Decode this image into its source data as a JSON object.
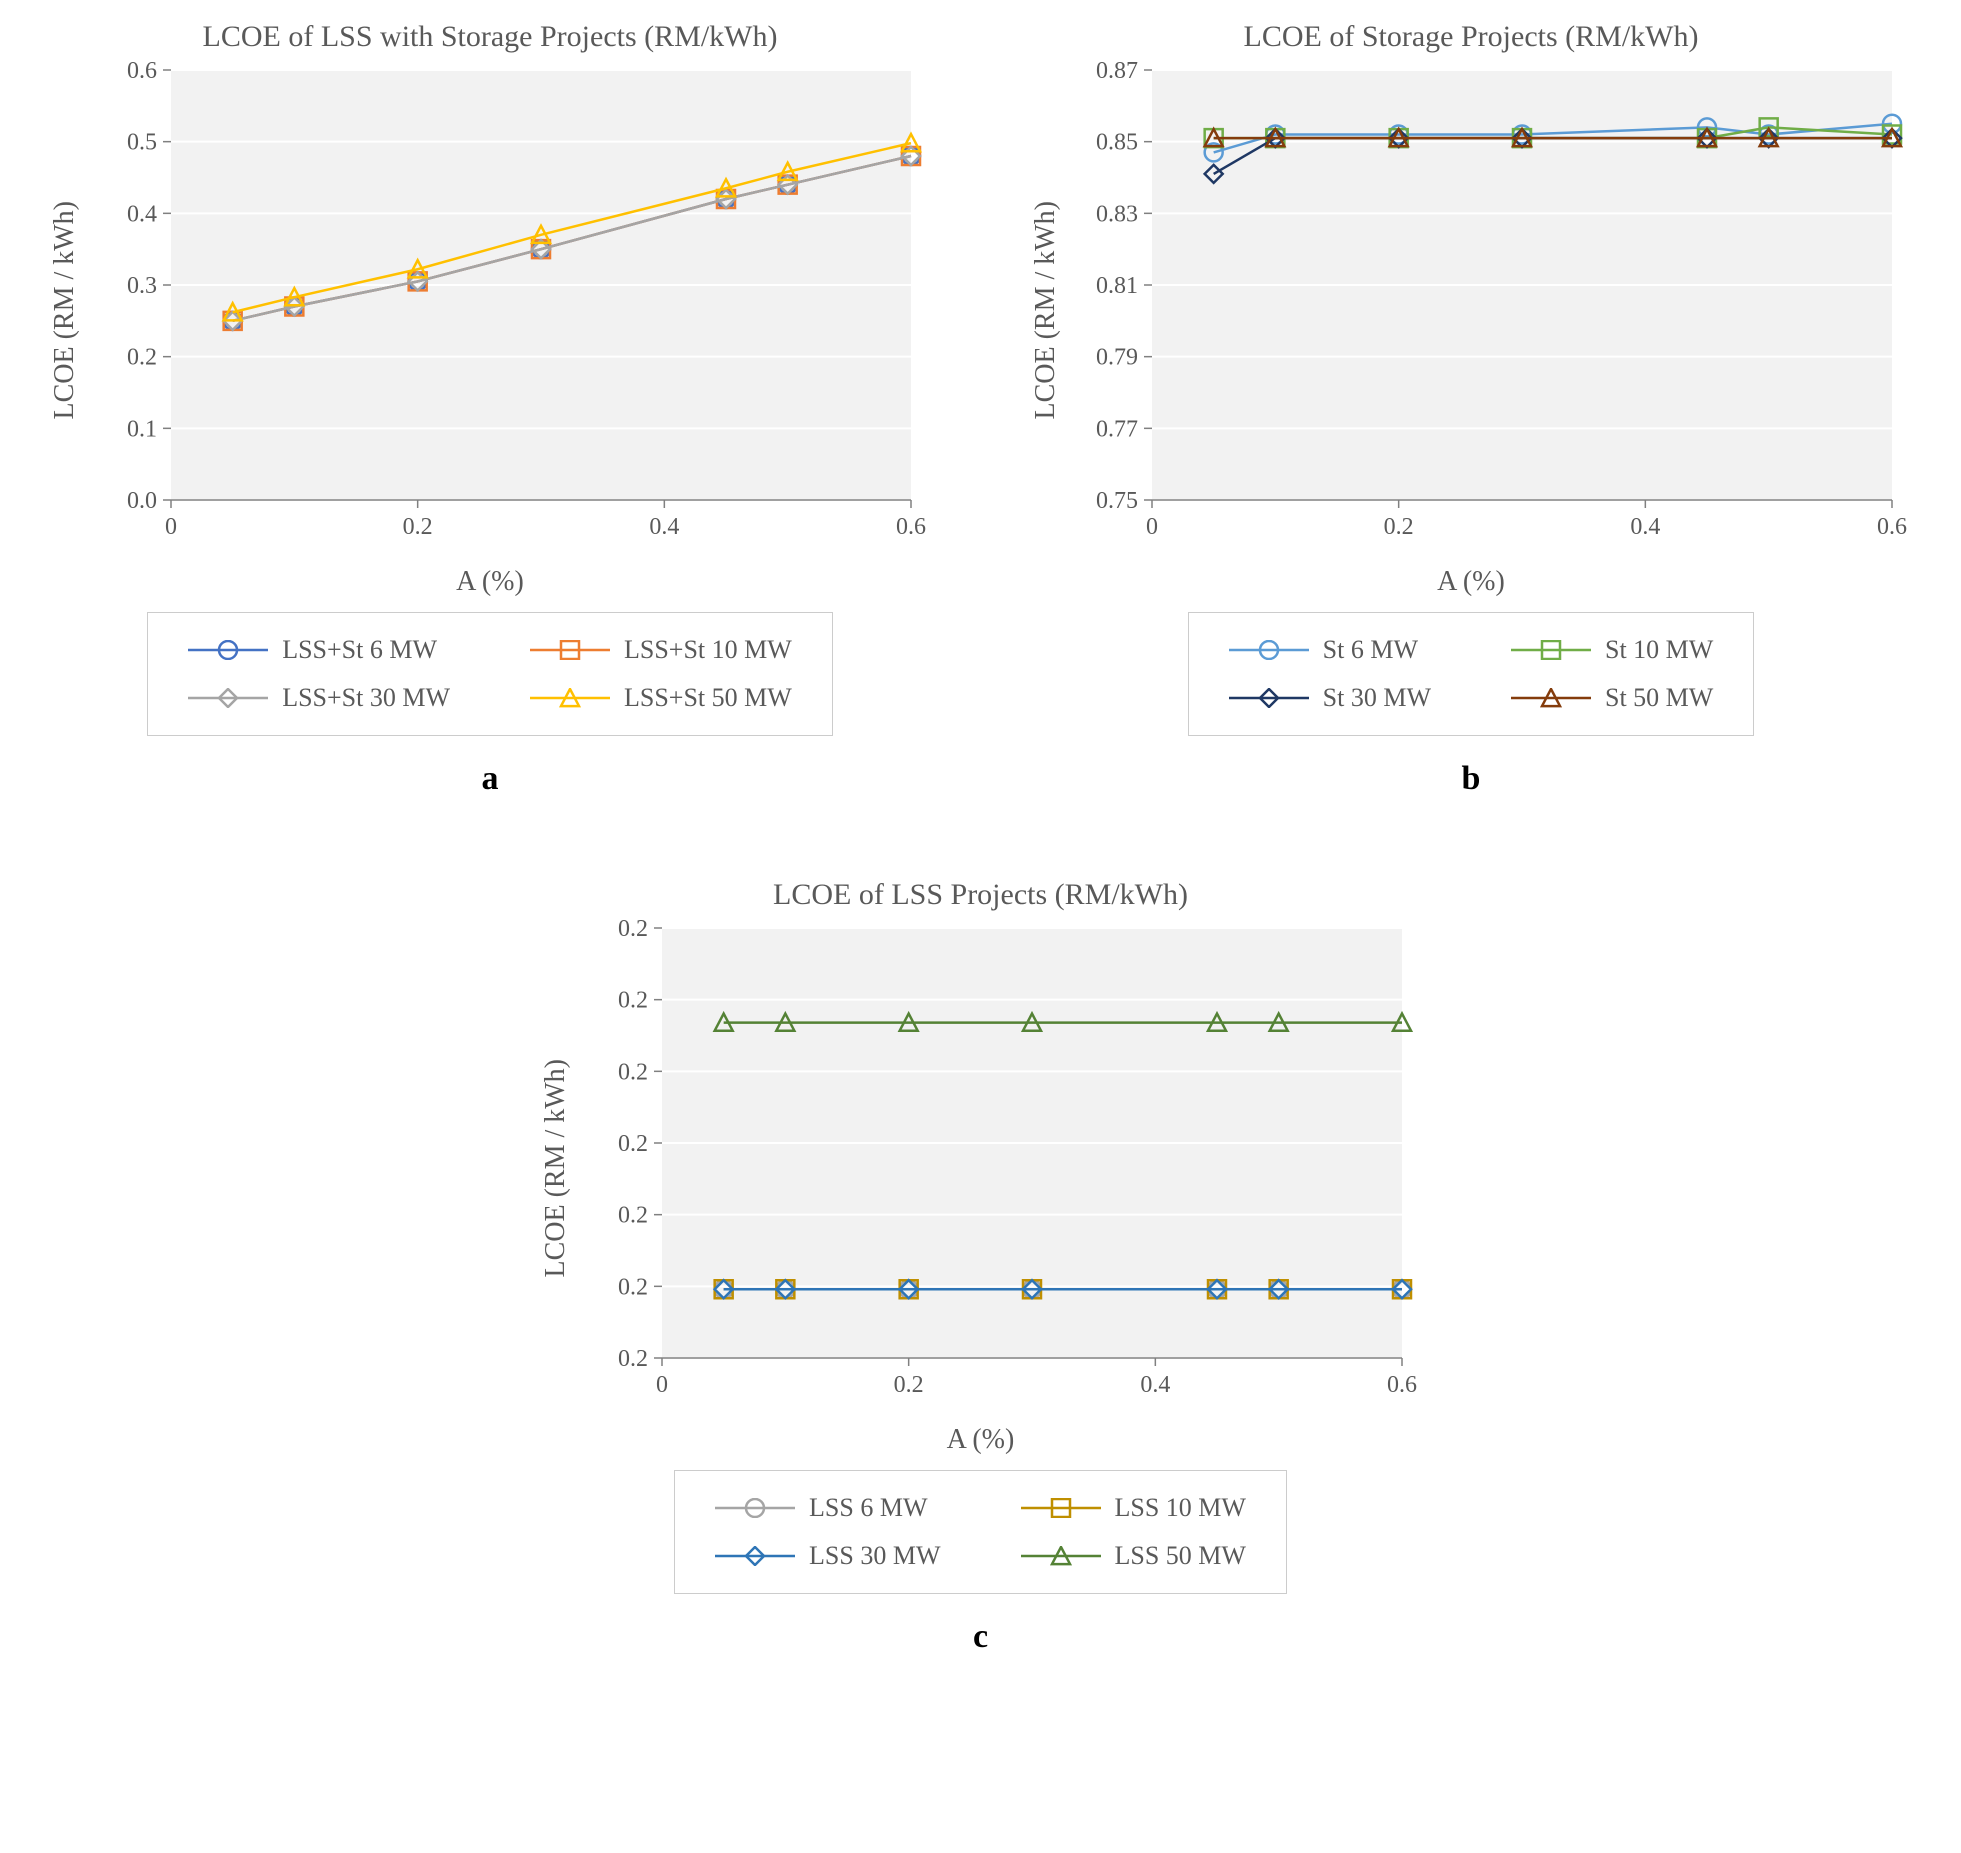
{
  "global": {
    "xlabel": "A (%)",
    "ylabel": "LCOE (RM / kWh)",
    "bg_color": "#ffffff",
    "plot_bg_color": "#f2f2f2",
    "grid_color": "#ffffff",
    "axis_text_color": "#595959",
    "subplot_label_color": "#000000",
    "font_family": "Times New Roman",
    "title_fontsize": 30,
    "label_fontsize": 28,
    "tick_fontsize": 24,
    "legend_fontsize": 26,
    "line_width": 2.5,
    "marker_size": 9
  },
  "chart_a": {
    "letter": "a",
    "title": "LCOE of LSS with Storage Projects (RM/kWh)",
    "type": "line",
    "x": [
      0.05,
      0.1,
      0.2,
      0.3,
      0.45,
      0.5,
      0.6
    ],
    "xlim": [
      0,
      0.6
    ],
    "xticks": [
      0,
      0.2,
      0.4,
      0.6
    ],
    "ylim": [
      0.0,
      0.6
    ],
    "yticks": [
      0.0,
      0.1,
      0.2,
      0.3,
      0.4,
      0.5,
      0.6
    ],
    "ytick_labels": [
      "0.0",
      "0.1",
      "0.2",
      "0.3",
      "0.4",
      "0.5",
      "0.6"
    ],
    "series": [
      {
        "name": "LSS+St 6 MW",
        "color": "#4472c4",
        "marker": "circle",
        "y": [
          0.25,
          0.27,
          0.305,
          0.35,
          0.42,
          0.44,
          0.48
        ]
      },
      {
        "name": "LSS+St 10 MW",
        "color": "#ed7d31",
        "marker": "square",
        "y": [
          0.25,
          0.27,
          0.305,
          0.35,
          0.42,
          0.44,
          0.48
        ]
      },
      {
        "name": "LSS+St 30 MW",
        "color": "#a5a5a5",
        "marker": "diamond",
        "y": [
          0.25,
          0.27,
          0.305,
          0.35,
          0.42,
          0.44,
          0.48
        ]
      },
      {
        "name": "LSS+St 50 MW",
        "color": "#ffc000",
        "marker": "triangle",
        "y": [
          0.262,
          0.283,
          0.322,
          0.37,
          0.435,
          0.458,
          0.498
        ]
      }
    ]
  },
  "chart_b": {
    "letter": "b",
    "title": "LCOE of Storage Projects  (RM/kWh)",
    "type": "line",
    "x": [
      0.05,
      0.1,
      0.2,
      0.3,
      0.45,
      0.5,
      0.6
    ],
    "xlim": [
      0,
      0.6
    ],
    "xticks": [
      0,
      0.2,
      0.4,
      0.6
    ],
    "ylim": [
      0.75,
      0.87
    ],
    "yticks": [
      0.75,
      0.77,
      0.79,
      0.81,
      0.83,
      0.85,
      0.87
    ],
    "ytick_labels": [
      "0.75",
      "0.77",
      "0.79",
      "0.81",
      "0.83",
      "0.85",
      "0.87"
    ],
    "series": [
      {
        "name": "St 6 MW",
        "color": "#5b9bd5",
        "marker": "circle",
        "y": [
          0.847,
          0.852,
          0.852,
          0.852,
          0.854,
          0.852,
          0.855
        ]
      },
      {
        "name": "St 10 MW",
        "color": "#70ad47",
        "marker": "square",
        "y": [
          0.851,
          0.851,
          0.851,
          0.851,
          0.851,
          0.854,
          0.852
        ]
      },
      {
        "name": "St 30 MW",
        "color": "#1f3864",
        "marker": "diamond",
        "y": [
          0.841,
          0.851,
          0.851,
          0.851,
          0.851,
          0.851,
          0.851
        ]
      },
      {
        "name": "St 50 MW",
        "color": "#843c0c",
        "marker": "triangle",
        "y": [
          0.851,
          0.851,
          0.851,
          0.851,
          0.851,
          0.851,
          0.851
        ]
      }
    ]
  },
  "chart_c": {
    "letter": "c",
    "title": "LCOE of LSS Projects  (RM/kWh)",
    "type": "line",
    "x": [
      0.05,
      0.1,
      0.2,
      0.3,
      0.45,
      0.5,
      0.6
    ],
    "xlim": [
      0,
      0.6
    ],
    "xticks": [
      0,
      0.2,
      0.4,
      0.6
    ],
    "ylim": [
      0.155,
      0.205
    ],
    "yticks": [
      0.155,
      0.163333,
      0.171667,
      0.18,
      0.188333,
      0.196667,
      0.205
    ],
    "ytick_labels": [
      "0.2",
      "0.2",
      "0.2",
      "0.2",
      "0.2",
      "0.2",
      "0.2"
    ],
    "series": [
      {
        "name": "LSS 6 MW",
        "color": "#a5a5a5",
        "marker": "circle",
        "y": [
          0.163,
          0.163,
          0.163,
          0.163,
          0.163,
          0.163,
          0.163
        ]
      },
      {
        "name": "LSS 10 MW",
        "color": "#bf8f00",
        "marker": "square",
        "y": [
          0.163,
          0.163,
          0.163,
          0.163,
          0.163,
          0.163,
          0.163
        ]
      },
      {
        "name": "LSS 30 MW",
        "color": "#2e75b6",
        "marker": "diamond",
        "y": [
          0.163,
          0.163,
          0.163,
          0.163,
          0.163,
          0.163,
          0.163
        ]
      },
      {
        "name": "LSS 50 MW",
        "color": "#548235",
        "marker": "triangle",
        "y": [
          0.194,
          0.194,
          0.194,
          0.194,
          0.194,
          0.194,
          0.194
        ]
      }
    ]
  }
}
